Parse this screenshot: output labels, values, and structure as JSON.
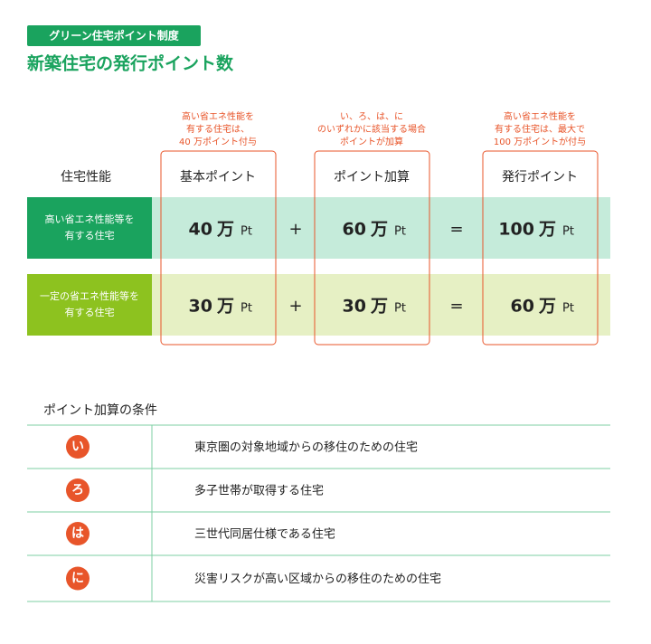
{
  "header": {
    "tag": "グリーン住宅ポイント制度",
    "title": "新築住宅の発行ポイント数"
  },
  "table": {
    "notes": [
      [
        "高い省エネ性能を",
        "有する住宅は、",
        "40 万ポイント付与"
      ],
      [
        "い、ろ、は、に",
        "のいずれかに該当する場合",
        "ポイントが加算"
      ],
      [
        "高い省エネ性能を",
        "有する住宅は、最大で",
        "100 万ポイントが付与"
      ]
    ],
    "columns": [
      "住宅性能",
      "基本ポイント",
      "ポイント加算",
      "発行ポイント"
    ],
    "unit_man": "万",
    "unit_pt": "Pt",
    "plus": "+",
    "equals": "=",
    "rows": [
      {
        "label": [
          "高い省エネ性能等を",
          "有する住宅"
        ],
        "base": "40",
        "add": "60",
        "total": "100"
      },
      {
        "label": [
          "一定の省エネ性能等を",
          "有する住宅"
        ],
        "base": "30",
        "add": "30",
        "total": "60"
      }
    ]
  },
  "conditions": {
    "title": "ポイント加算の条件",
    "items": [
      {
        "mark": "い",
        "text": "東京圏の対象地域からの移住のための住宅"
      },
      {
        "mark": "ろ",
        "text": "多子世帯が取得する住宅"
      },
      {
        "mark": "は",
        "text": "三世代同居仕様である住宅"
      },
      {
        "mark": "に",
        "text": "災害リスクが高い区域からの移住のための住宅"
      }
    ]
  }
}
